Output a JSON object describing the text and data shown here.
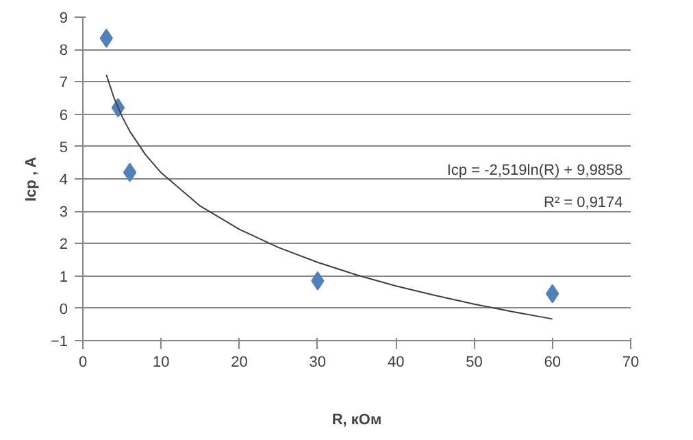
{
  "chart_data": {
    "type": "scatter",
    "xlabel": "R, кОм",
    "ylabel": "Icp , A",
    "xlim": [
      0,
      70
    ],
    "ylim": [
      -1,
      9
    ],
    "xticks": [
      0,
      10,
      20,
      30,
      40,
      50,
      60,
      70
    ],
    "yticks": [
      -1,
      0,
      1,
      2,
      3,
      4,
      5,
      6,
      7,
      8,
      9
    ],
    "grid": "y",
    "marker": "diamond",
    "series": [
      {
        "color": "#4f81bd",
        "x": [
          3,
          4.5,
          6,
          30,
          60
        ],
        "values": [
          8.35,
          6.2,
          4.2,
          0.85,
          0.45
        ]
      },
      {
        "type": "line",
        "color": "#404040",
        "line_style": "solid",
        "marker": "none",
        "x": [
          3,
          4,
          5,
          6,
          8,
          10,
          15,
          20,
          25,
          30,
          35,
          40,
          45,
          50,
          55,
          60
        ],
        "values": [
          7.22,
          6.49,
          5.93,
          5.47,
          4.75,
          4.19,
          3.16,
          2.44,
          1.88,
          1.42,
          1.03,
          0.69,
          0.4,
          0.13,
          -0.11,
          -0.33
        ]
      }
    ],
    "annotations": [
      "Icp = -2,519ln(R) + 9,9858",
      "R² = 0,9174"
    ]
  }
}
